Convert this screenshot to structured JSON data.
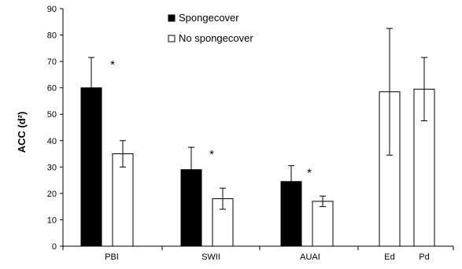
{
  "chart_data": {
    "type": "bar",
    "ylabel": "ACC (d²)",
    "xlabel": "",
    "ylim": [
      0,
      90
    ],
    "yticks": [
      0,
      10,
      20,
      30,
      40,
      50,
      60,
      70,
      80,
      90
    ],
    "grid": false,
    "legend_position": "top-center",
    "legend": [
      {
        "label": "Spongecover",
        "color": "#000000"
      },
      {
        "label": "No spongecover",
        "color": "#ffffff"
      }
    ],
    "groups": [
      {
        "label": "PBI",
        "bars": [
          {
            "series": "Spongecover",
            "value": 60,
            "err": 11.5
          },
          {
            "series": "No spongecover",
            "value": 35,
            "err": 5
          }
        ],
        "annotation": "*"
      },
      {
        "label": "SWII",
        "bars": [
          {
            "series": "Spongecover",
            "value": 29,
            "err": 8.5
          },
          {
            "series": "No spongecover",
            "value": 18,
            "err": 4
          }
        ],
        "annotation": "*"
      },
      {
        "label": "AUAI",
        "bars": [
          {
            "series": "Spongecover",
            "value": 24.5,
            "err": 6
          },
          {
            "series": "No spongecover",
            "value": 17,
            "err": 2
          }
        ],
        "annotation": "*"
      },
      {
        "label": "Ed",
        "bars": [
          {
            "series": "No spongecover",
            "value": 58.5,
            "err": 24
          }
        ],
        "annotation": ""
      },
      {
        "label": "Pd",
        "bars": [
          {
            "series": "No spongecover",
            "value": 59.5,
            "err": 12
          }
        ],
        "annotation": ""
      }
    ]
  }
}
